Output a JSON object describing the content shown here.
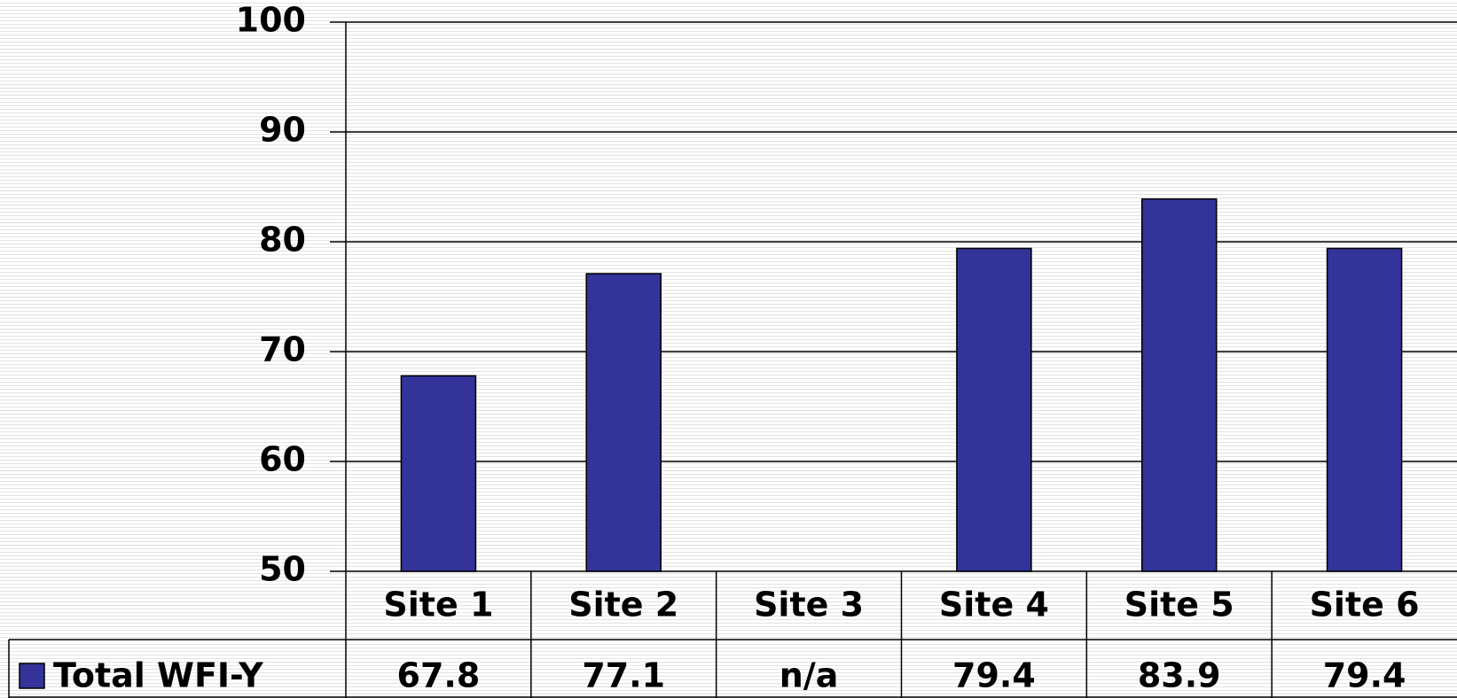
{
  "chart_data": {
    "type": "bar",
    "categories": [
      "Site 1",
      "Site 2",
      "Site 3",
      "Site 4",
      "Site 5",
      "Site 6"
    ],
    "series": [
      {
        "name": "Total WFI-Y",
        "color": "#333399",
        "values": [
          67.8,
          77.1,
          null,
          79.4,
          83.9,
          79.4
        ],
        "value_labels": [
          "67.8",
          "77.1",
          "n/a",
          "79.4",
          "83.9",
          "79.4"
        ]
      }
    ],
    "ylim": [
      50,
      100
    ],
    "yticks": [
      50,
      60,
      70,
      80,
      90,
      100
    ],
    "grid": true,
    "legend": "bottom-left"
  }
}
